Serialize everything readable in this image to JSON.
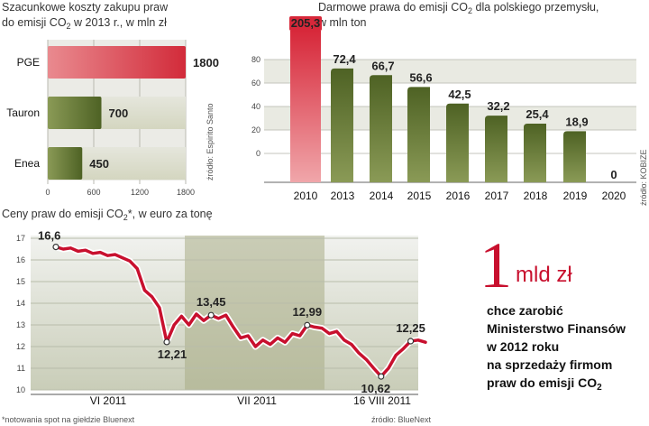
{
  "chart_data": [
    {
      "type": "bar",
      "orientation": "horizontal",
      "title_line1": "Szacunkowe koszty zakupu praw",
      "title_line2_pre": "do emisji CO",
      "title_line2_sub": "2",
      "title_line2_post": " w 2013 r., w mln zł",
      "categories": [
        "PGE",
        "Tauron",
        "Enea"
      ],
      "values": [
        1800,
        700,
        450
      ],
      "value_labels": [
        "1800",
        "700",
        "450"
      ],
      "xlim": [
        0,
        1800
      ],
      "xticks": [
        "0",
        "600",
        "1200",
        "1800"
      ],
      "source": "źródło: Espirito Santo",
      "colors": {
        "highlight": "#d9303d",
        "bar": "#5a6e2c"
      }
    },
    {
      "type": "bar",
      "title_line1_pre": "Darmowe prawa do emisji CO",
      "title_line1_sub": "2",
      "title_line1_post": " dla polskiego przemysłu,",
      "title_line2": "w mln ton",
      "categories": [
        "2010",
        "2013",
        "2014",
        "2015",
        "2016",
        "2017",
        "2018",
        "2019",
        "2020"
      ],
      "values": [
        205.3,
        72.4,
        66.7,
        56.6,
        42.5,
        32.2,
        25.4,
        18.9,
        0
      ],
      "value_labels": [
        "205,3",
        "72,4",
        "66,7",
        "56,6",
        "42,5",
        "32,2",
        "25,4",
        "18,9",
        "0"
      ],
      "ylim": [
        0,
        80
      ],
      "yticks": [
        "0",
        "20",
        "40",
        "60",
        "80"
      ],
      "source": "źródło: KOBIZE",
      "colors": {
        "highlight": "#d9303d",
        "bar": "#5a6e2c"
      }
    },
    {
      "type": "line",
      "title_pre": "Ceny praw do emisji CO",
      "title_sub": "2",
      "title_post": "*, w euro za tonę",
      "ylim": [
        10,
        17
      ],
      "yticks": [
        "10",
        "11",
        "12",
        "13",
        "14",
        "15",
        "16",
        "17"
      ],
      "x_period_labels": [
        "VI 2011",
        "VII 2011",
        "16 VIII 2011"
      ],
      "series": [
        {
          "values": [
            16.6,
            16.5,
            16.55,
            16.4,
            16.45,
            16.3,
            16.35,
            16.2,
            16.25,
            16.1,
            15.95,
            15.6,
            14.6,
            14.3,
            13.8,
            12.21,
            13.0,
            13.4,
            13.0,
            13.5,
            13.2,
            13.45,
            13.3,
            13.45,
            12.9,
            12.4,
            12.5,
            12.0,
            12.3,
            12.1,
            12.4,
            12.2,
            12.6,
            12.5,
            12.99,
            12.9,
            12.85,
            12.6,
            12.7,
            12.3,
            12.1,
            11.7,
            11.4,
            11.0,
            10.62,
            11.0,
            11.6,
            11.9,
            12.25,
            12.3,
            12.2
          ]
        }
      ],
      "annotations": [
        {
          "index": 0,
          "label": "16,6"
        },
        {
          "index": 15,
          "label": "12,21"
        },
        {
          "index": 21,
          "label": "13,45"
        },
        {
          "index": 34,
          "label": "12,99"
        },
        {
          "index": 44,
          "label": "10,62"
        },
        {
          "index": 48,
          "label": "12,25"
        }
      ],
      "footnote": "*notowania spot na giełdzie Bluenext",
      "source": "źródło: BlueNext",
      "colors": {
        "line": "#c8102e"
      }
    }
  ],
  "callout": {
    "big_number": "1",
    "unit": "mld zł",
    "lines": [
      "chce zarobić",
      "Ministerstwo Finansów",
      "w 2012 roku",
      "na sprzedaży firmom"
    ],
    "last_line_pre": "praw do emisji CO",
    "last_line_sub": "2"
  }
}
